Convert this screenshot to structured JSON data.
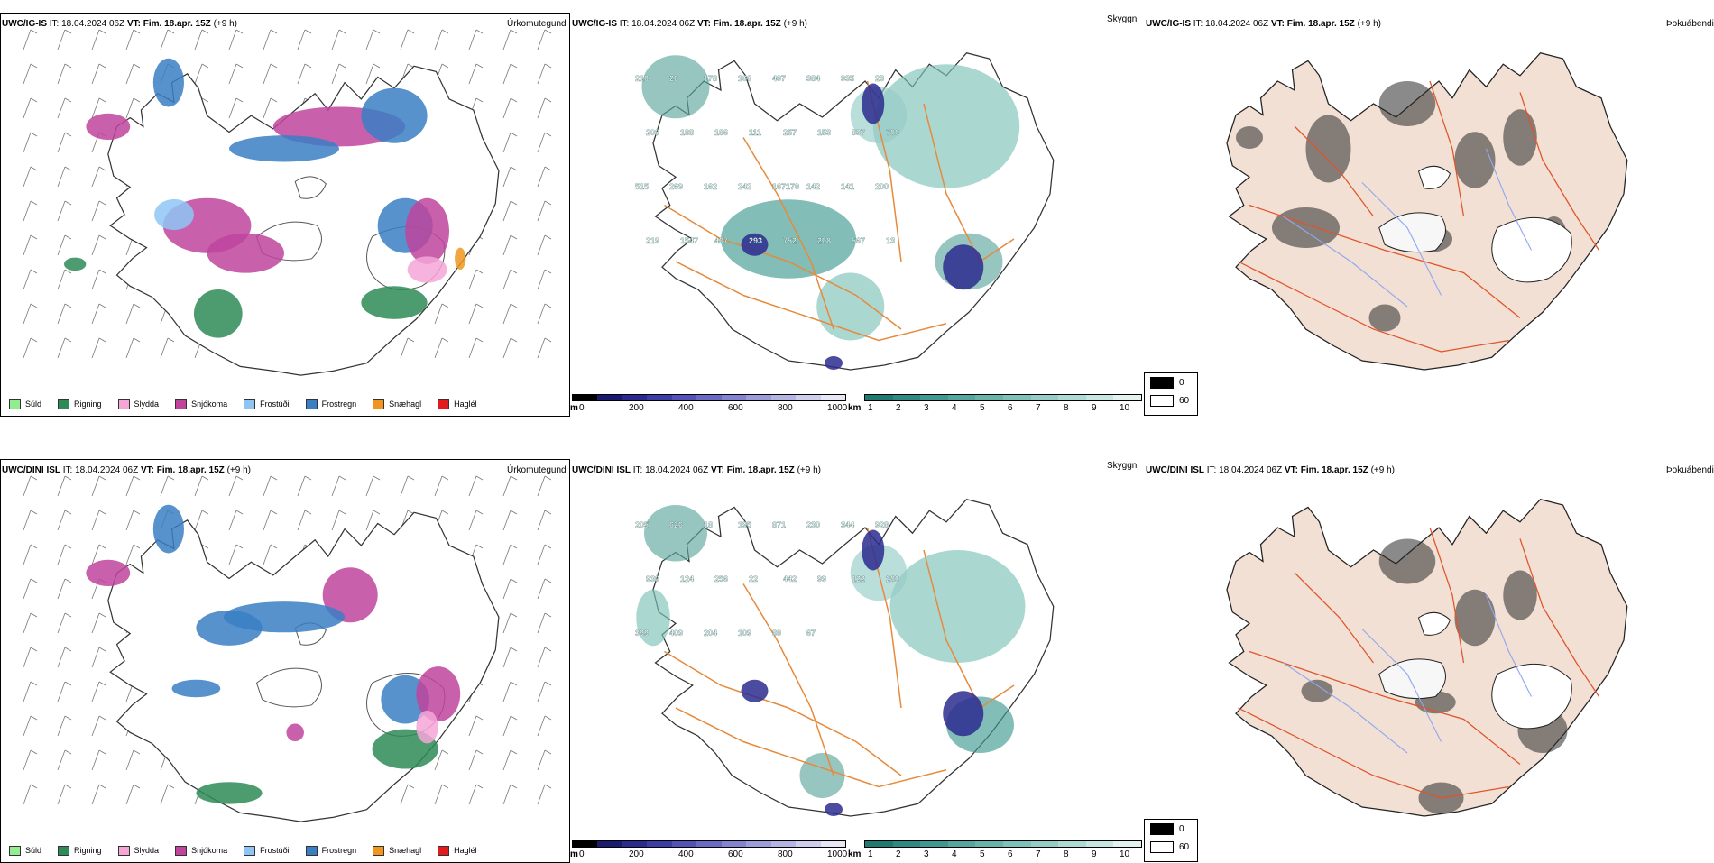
{
  "rows": [
    {
      "model": "UWC/IG-IS",
      "it_label": "IT:",
      "it_value": "18.04.2024 06Z",
      "vt_label": "VT:",
      "vt_value": "Fim. 18.apr. 15Z",
      "lead": "(+9 h)",
      "precip_title": "Úrkomutegund",
      "vis_title": "Skyggni",
      "fog_title": "Þokuábendi",
      "precip_numbers": [],
      "vis_numbers": [
        "210",
        "26",
        "178",
        "166",
        "407",
        "384",
        "935",
        "23",
        "208",
        "188",
        "186",
        "111",
        "257",
        "153",
        "897",
        "780",
        "515",
        "269",
        "162",
        "242",
        "167170",
        "142",
        "141",
        "200",
        "219",
        "1547",
        "407",
        "293",
        "752",
        "208",
        "567",
        "13"
      ]
    },
    {
      "model": "UWC/DINI ISL",
      "it_label": "IT:",
      "it_value": "18.04.2024 06Z",
      "vt_label": "VT:",
      "vt_value": "Fim. 18.apr. 15Z",
      "lead": "(+9 h)",
      "precip_title": "Úrkomutegund",
      "vis_title": "Skyggni",
      "fog_title": "Þokuábendi",
      "vis_numbers": [
        "205",
        "626",
        "18",
        "195",
        "871",
        "230",
        "344",
        "928",
        "930",
        "124",
        "256",
        "22",
        "442",
        "99",
        "122",
        "280",
        "399",
        "409",
        "204",
        "109",
        "80",
        "67"
      ]
    }
  ],
  "precip_legend": [
    {
      "label": "Súld",
      "color": "#90ee90"
    },
    {
      "label": "Rigning",
      "color": "#2e8b57"
    },
    {
      "label": "Slydda",
      "color": "#f4a6d7"
    },
    {
      "label": "Snjókoma",
      "color": "#c0449e"
    },
    {
      "label": "Frostúði",
      "color": "#8ec5f5"
    },
    {
      "label": "Frostregn",
      "color": "#3a7fc4"
    },
    {
      "label": "Snæhagl",
      "color": "#f0961e"
    },
    {
      "label": "Haglél",
      "color": "#e41a1c"
    }
  ],
  "height_bar": {
    "unit": "m",
    "ticks": [
      "0",
      "200",
      "400",
      "600",
      "800",
      "1000"
    ],
    "colors": [
      "#000000",
      "#1a1a6e",
      "#2b2b8f",
      "#3d3da8",
      "#5252b8",
      "#6a6ac4",
      "#8383cf",
      "#9c9cd9",
      "#b5b5e3",
      "#ceceec",
      "#e6e6f5"
    ]
  },
  "vis_bar": {
    "unit": "km",
    "ticks": [
      "1",
      "2",
      "3",
      "4",
      "5",
      "6",
      "7",
      "8",
      "9",
      "10"
    ],
    "colors": [
      "#1f7a72",
      "#2e8a82",
      "#3f9990",
      "#53a79e",
      "#68b4ab",
      "#7ec1b9",
      "#95cdc6",
      "#aedad4",
      "#c8e6e1",
      "#e3f2ef"
    ]
  },
  "fog_key": {
    "entries": [
      {
        "label": "0",
        "color": "#000000"
      },
      {
        "label": "60",
        "color": "#ffffff"
      }
    ]
  }
}
